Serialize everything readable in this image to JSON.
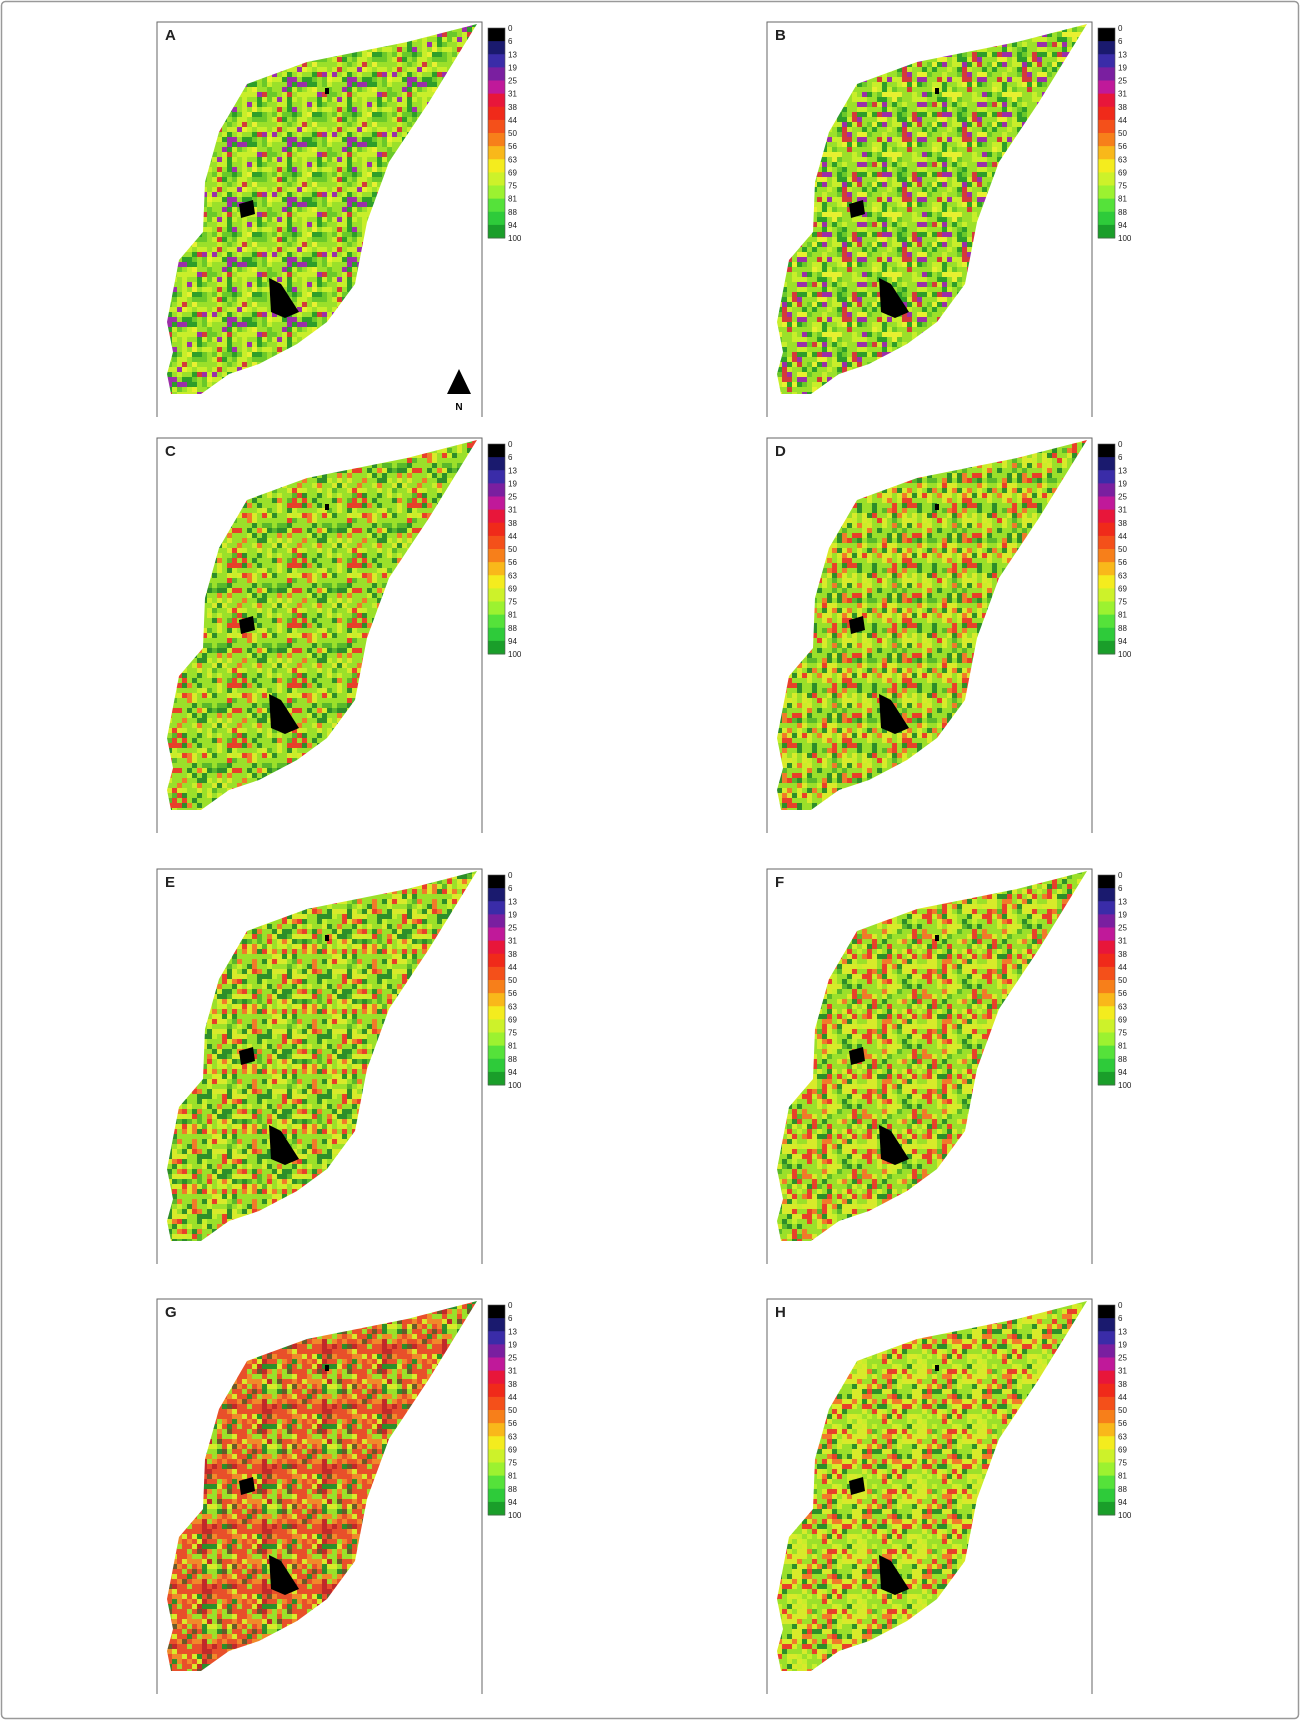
{
  "panels": [
    {
      "label": "A"
    },
    {
      "label": "B"
    },
    {
      "label": "C"
    },
    {
      "label": "D"
    },
    {
      "label": "E"
    },
    {
      "label": "F"
    },
    {
      "label": "G"
    },
    {
      "label": "H"
    }
  ],
  "legend": {
    "labels": [
      0,
      6,
      13,
      19,
      25,
      31,
      38,
      44,
      50,
      56,
      63,
      69,
      75,
      81,
      88,
      94,
      100
    ],
    "colors": [
      "#000000",
      "#1a1a6e",
      "#3a2ca8",
      "#7a1fa0",
      "#c0199a",
      "#e8163a",
      "#f02a1a",
      "#f4501a",
      "#f77f1a",
      "#f9b81a",
      "#f4ec1e",
      "#cdf22a",
      "#9cf230",
      "#55e23a",
      "#2ecb3a",
      "#1a9e2a"
    ]
  },
  "north_label": "N"
}
